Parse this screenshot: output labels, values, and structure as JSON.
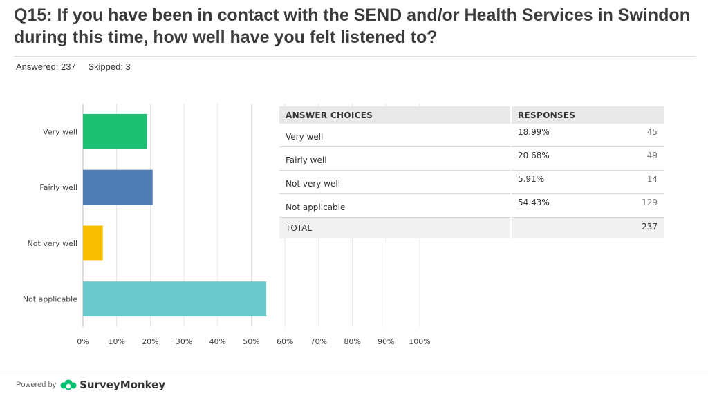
{
  "title": "Q15: If you have been in contact with the SEND and/or Health Services in Swindon during this time, how well have you felt listened to?",
  "stats": {
    "answered": "Answered: 237",
    "skipped": "Skipped: 3"
  },
  "colors": {
    "very_well": "#1dbf73",
    "fairly_well": "#507cb6",
    "not_very_well": "#f9be00",
    "not_applicable": "#6bc8cd"
  },
  "chart_data": {
    "type": "bar",
    "orientation": "horizontal",
    "categories": [
      "Very well",
      "Fairly well",
      "Not very well",
      "Not applicable"
    ],
    "values": [
      18.99,
      20.68,
      5.91,
      54.43
    ],
    "colors": [
      "#1dbf73",
      "#507cb6",
      "#f9be00",
      "#6bc8cd"
    ],
    "xlim": [
      0,
      100
    ],
    "xticks": [
      "0%",
      "10%",
      "20%",
      "30%",
      "40%",
      "50%",
      "60%",
      "70%",
      "80%",
      "90%",
      "100%"
    ],
    "grid": true
  },
  "table": {
    "headers": [
      "ANSWER CHOICES",
      "RESPONSES"
    ],
    "rows": [
      {
        "choice": "Very well",
        "percent": "18.99%",
        "count": "45"
      },
      {
        "choice": "Fairly well",
        "percent": "20.68%",
        "count": "49"
      },
      {
        "choice": "Not very well",
        "percent": "5.91%",
        "count": "14"
      },
      {
        "choice": "Not applicable",
        "percent": "54.43%",
        "count": "129"
      }
    ],
    "total_label": "TOTAL",
    "total_value": "237"
  },
  "footer": {
    "powered_by": "Powered by",
    "brand": "SurveyMonkey",
    "logo_icon": "surveymonkey-logo-icon"
  }
}
